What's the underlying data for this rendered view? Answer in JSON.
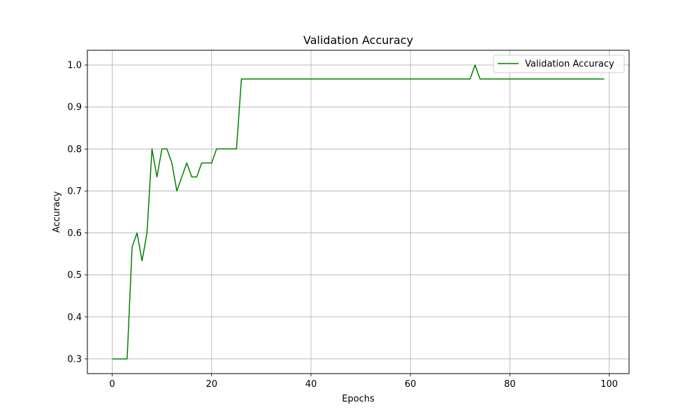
{
  "chart_data": {
    "type": "line",
    "title": "Validation Accuracy",
    "xlabel": "Epochs",
    "ylabel": "Accuracy",
    "xlim": [
      -5,
      104
    ],
    "ylim": [
      0.265,
      1.035
    ],
    "xticks": [
      0,
      20,
      40,
      60,
      80,
      100
    ],
    "xtick_labels": [
      "0",
      "20",
      "40",
      "60",
      "80",
      "100"
    ],
    "yticks": [
      0.3,
      0.4,
      0.5,
      0.6,
      0.7,
      0.8,
      0.9,
      1.0
    ],
    "ytick_labels": [
      "0.3",
      "0.4",
      "0.5",
      "0.6",
      "0.7",
      "0.8",
      "0.9",
      "1.0"
    ],
    "grid": true,
    "legend_position": "top-right",
    "series": [
      {
        "name": "Validation Accuracy",
        "color": "#008000",
        "x": [
          0,
          1,
          2,
          3,
          4,
          5,
          6,
          7,
          8,
          9,
          10,
          11,
          12,
          13,
          14,
          15,
          16,
          17,
          18,
          19,
          20,
          21,
          22,
          23,
          24,
          25,
          26,
          27,
          28,
          29,
          30,
          31,
          32,
          33,
          34,
          35,
          36,
          37,
          38,
          39,
          40,
          41,
          42,
          43,
          44,
          45,
          46,
          47,
          48,
          49,
          50,
          51,
          52,
          53,
          54,
          55,
          56,
          57,
          58,
          59,
          60,
          61,
          62,
          63,
          64,
          65,
          66,
          67,
          68,
          69,
          70,
          71,
          72,
          73,
          74,
          75,
          76,
          77,
          78,
          79,
          80,
          81,
          82,
          83,
          84,
          85,
          86,
          87,
          88,
          89,
          90,
          91,
          92,
          93,
          94,
          95,
          96,
          97,
          98,
          99
        ],
        "values": [
          0.3,
          0.3,
          0.3,
          0.3,
          0.5667,
          0.6,
          0.5333,
          0.6,
          0.8,
          0.7333,
          0.8,
          0.8,
          0.7667,
          0.7,
          0.7333,
          0.7667,
          0.7333,
          0.7333,
          0.7667,
          0.7667,
          0.7667,
          0.8,
          0.8,
          0.8,
          0.8,
          0.8,
          0.9667,
          0.9667,
          0.9667,
          0.9667,
          0.9667,
          0.9667,
          0.9667,
          0.9667,
          0.9667,
          0.9667,
          0.9667,
          0.9667,
          0.9667,
          0.9667,
          0.9667,
          0.9667,
          0.9667,
          0.9667,
          0.9667,
          0.9667,
          0.9667,
          0.9667,
          0.9667,
          0.9667,
          0.9667,
          0.9667,
          0.9667,
          0.9667,
          0.9667,
          0.9667,
          0.9667,
          0.9667,
          0.9667,
          0.9667,
          0.9667,
          0.9667,
          0.9667,
          0.9667,
          0.9667,
          0.9667,
          0.9667,
          0.9667,
          0.9667,
          0.9667,
          0.9667,
          0.9667,
          0.9667,
          1.0,
          0.9667,
          0.9667,
          0.9667,
          0.9667,
          0.9667,
          0.9667,
          0.9667,
          0.9667,
          0.9667,
          0.9667,
          0.9667,
          0.9667,
          0.9667,
          0.9667,
          0.9667,
          0.9667,
          0.9667,
          0.9667,
          0.9667,
          0.9667,
          0.9667,
          0.9667,
          0.9667,
          0.9667,
          0.9667,
          0.9667
        ]
      }
    ]
  }
}
